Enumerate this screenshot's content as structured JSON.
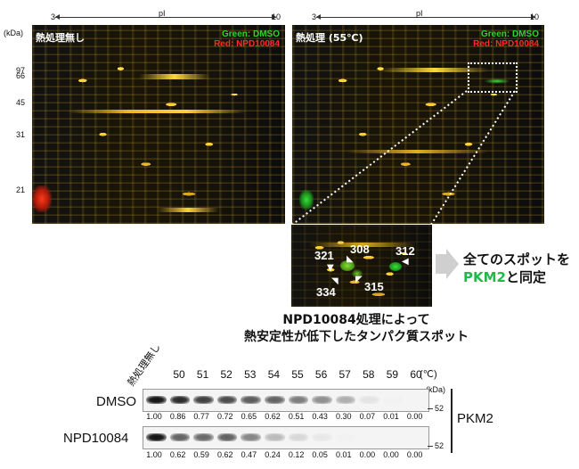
{
  "gels": {
    "pi_label": "pI",
    "pi_min": "3",
    "pi_max": "10",
    "kda_label": "(kDa)",
    "mw_markers": [
      "97",
      "66",
      "45",
      "31",
      "21"
    ],
    "legend_green": "Green: DMSO",
    "legend_red": "Red: NPD10084",
    "left_title": "熱処理無し",
    "right_title": "熱処理 (55℃)"
  },
  "zoom": {
    "spots": [
      "321",
      "308",
      "312",
      "334",
      "315"
    ],
    "result_line1": "全てのスポットを",
    "result_pkm2": "PKM2",
    "result_line2": "と同定"
  },
  "caption": {
    "line1": "NPD10084処理によって",
    "line2": "熱安定性が低下したタンパク質スポット"
  },
  "western": {
    "no_heat_label": "熱処理無し",
    "temperatures": [
      "50",
      "51",
      "52",
      "53",
      "54",
      "55",
      "56",
      "57",
      "58",
      "59",
      "60"
    ],
    "temp_unit": "(℃)",
    "kda_label": "(kDa)",
    "marker": "52",
    "protein": "PKM2",
    "rows": [
      {
        "name": "DMSO",
        "values": [
          "1.00",
          "0.86",
          "0.77",
          "0.72",
          "0.65",
          "0.62",
          "0.51",
          "0.43",
          "0.30",
          "0.07",
          "0.01",
          "0.00"
        ],
        "intensity": [
          1.0,
          0.86,
          0.77,
          0.72,
          0.65,
          0.62,
          0.51,
          0.43,
          0.3,
          0.07,
          0.01,
          0.0
        ]
      },
      {
        "name": "NPD10084",
        "values": [
          "1.00",
          "0.62",
          "0.59",
          "0.62",
          "0.47",
          "0.24",
          "0.12",
          "0.05",
          "0.01",
          "0.00",
          "0.00",
          "0.00"
        ],
        "intensity": [
          1.0,
          0.62,
          0.59,
          0.62,
          0.47,
          0.24,
          0.12,
          0.05,
          0.01,
          0.0,
          0.0,
          0.0
        ]
      }
    ]
  }
}
